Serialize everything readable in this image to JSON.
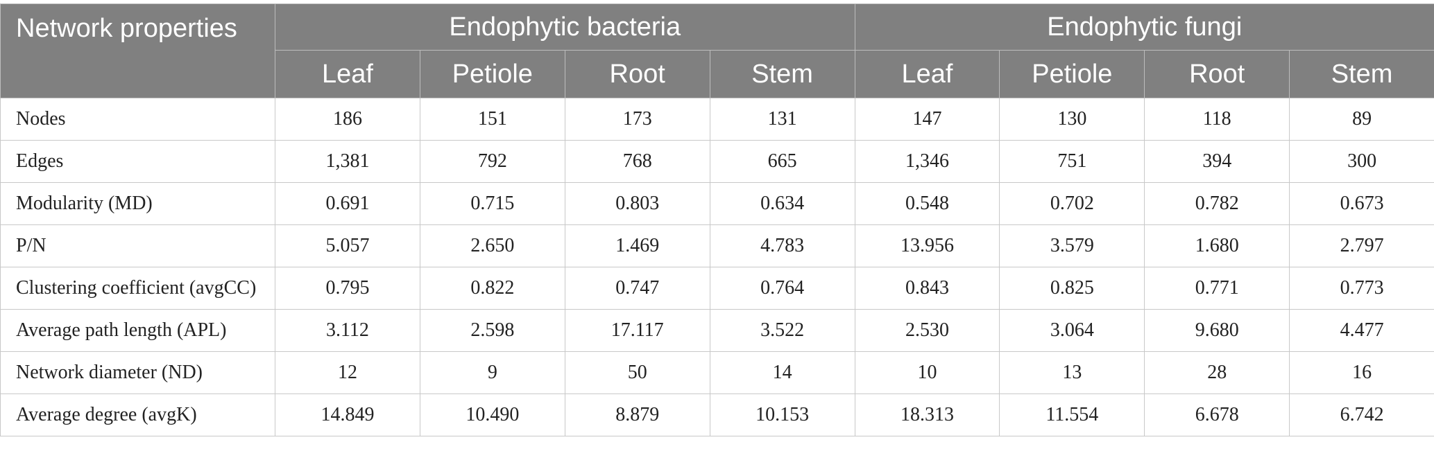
{
  "header": {
    "corner": "Network properties",
    "groups": [
      "Endophytic bacteria",
      "Endophytic fungi"
    ],
    "subheaders": [
      "Leaf",
      "Petiole",
      "Root",
      "Stem",
      "Leaf",
      "Petiole",
      "Root",
      "Stem"
    ]
  },
  "rows": [
    {
      "label": "Nodes",
      "values": [
        "186",
        "151",
        "173",
        "131",
        "147",
        "130",
        "118",
        "89"
      ]
    },
    {
      "label": "Edges",
      "values": [
        "1,381",
        "792",
        "768",
        "665",
        "1,346",
        "751",
        "394",
        "300"
      ]
    },
    {
      "label": "Modularity (MD)",
      "values": [
        "0.691",
        "0.715",
        "0.803",
        "0.634",
        "0.548",
        "0.702",
        "0.782",
        "0.673"
      ]
    },
    {
      "label": "P/N",
      "values": [
        "5.057",
        "2.650",
        "1.469",
        "4.783",
        "13.956",
        "3.579",
        "1.680",
        "2.797"
      ]
    },
    {
      "label": "Clustering coefficient (avgCC)",
      "values": [
        "0.795",
        "0.822",
        "0.747",
        "0.764",
        "0.843",
        "0.825",
        "0.771",
        "0.773"
      ]
    },
    {
      "label": "Average path length (APL)",
      "values": [
        "3.112",
        "2.598",
        "17.117",
        "3.522",
        "2.530",
        "3.064",
        "9.680",
        "4.477"
      ]
    },
    {
      "label": "Network diameter (ND)",
      "values": [
        "12",
        "9",
        "50",
        "14",
        "10",
        "13",
        "28",
        "16"
      ]
    },
    {
      "label": "Average degree (avgK)",
      "values": [
        "14.849",
        "10.490",
        "8.879",
        "10.153",
        "18.313",
        "11.554",
        "6.678",
        "6.742"
      ]
    }
  ]
}
